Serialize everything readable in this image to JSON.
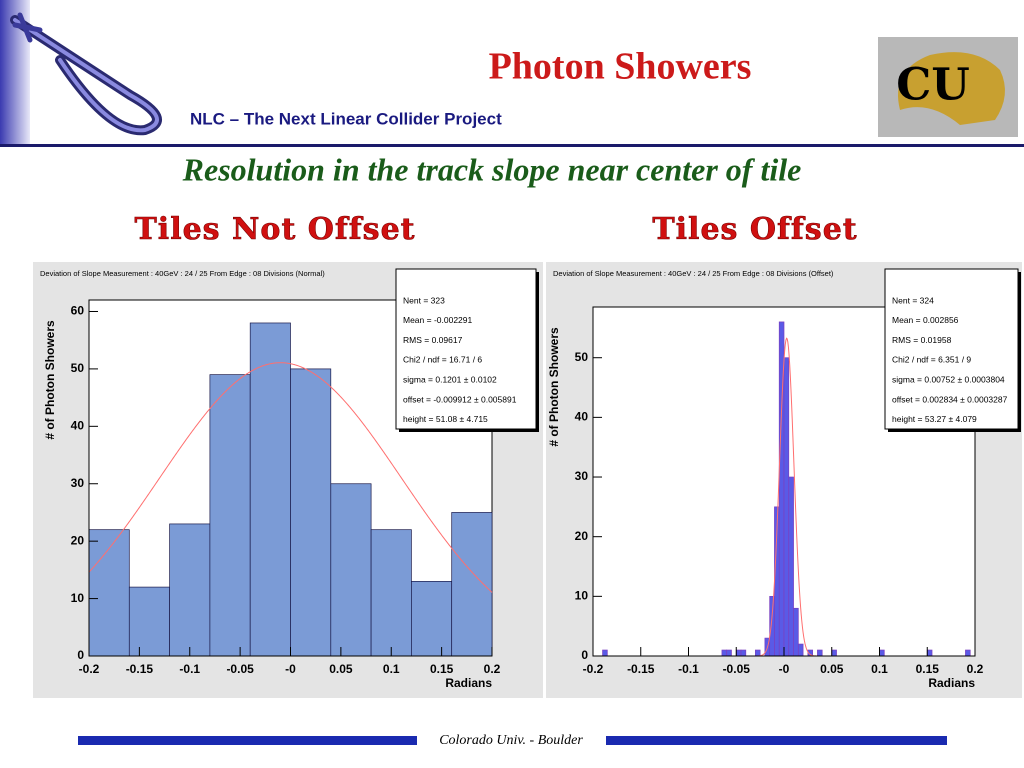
{
  "slide": {
    "title": "Photon Showers",
    "subtitle": "NLC – The Next Linear Collider Project",
    "logo_text": "CU",
    "heading": "Resolution in the track slope near center  of tile",
    "footer": "Colorado Univ. - Boulder"
  },
  "chart_data": [
    {
      "type": "histogram",
      "heading": "Tiles Not Offset",
      "title": "Deviation of Slope Measurement : 40GeV : 24 / 25 From Edge : 08 Divisions (Normal)",
      "x_label": "Radians",
      "y_label": "# of Photon Showers",
      "bins": [
        -0.2,
        -0.16,
        -0.12,
        -0.08,
        -0.04,
        0,
        0.04,
        0.08,
        0.12,
        0.16,
        0.2
      ],
      "values": [
        22,
        12,
        23,
        49,
        58,
        50,
        30,
        22,
        13,
        25
      ],
      "color": "#7b9bd6",
      "edge_color": "#1a1a4a",
      "fit": {
        "height": 51.08,
        "mean": -0.009912,
        "sigma": 0.1201,
        "color": "#ff6f6f"
      },
      "stats": [
        "Nent = 323",
        "Mean = -0.002291",
        "RMS = 0.09617",
        "Chi2 / ndf = 16.71 / 6",
        "sigma = 0.1201 ± 0.0102",
        "offset = -0.009912 ± 0.005891",
        "height = 51.08 ± 4.715"
      ],
      "xlim": [
        -0.2,
        0.2
      ],
      "ylim": [
        0,
        62
      ],
      "xticks": [
        -0.2,
        -0.15,
        -0.1,
        -0.05,
        {
          "value": 0,
          "label": "-0"
        },
        0.05,
        0.1,
        0.15,
        0.2
      ],
      "yticks": [
        0,
        10,
        20,
        30,
        40,
        50,
        60
      ]
    },
    {
      "type": "histogram",
      "heading": "Tiles Offset",
      "title": "Deviation of Slope Measurement : 40GeV : 24 / 25 From Edge : 08 Divisions (Offset)",
      "x_label": "Radians",
      "y_label": "# of Photon Showers",
      "bins": [
        -0.2,
        -0.195,
        -0.19,
        -0.185,
        -0.18,
        -0.175,
        -0.17,
        -0.165,
        -0.16,
        -0.155,
        -0.15,
        -0.145,
        -0.14,
        -0.135,
        -0.13,
        -0.125,
        -0.12,
        -0.115,
        -0.11,
        -0.105,
        -0.1,
        -0.095,
        -0.09,
        -0.085,
        -0.08,
        -0.075,
        -0.07,
        -0.065,
        -0.06,
        -0.055,
        -0.05,
        -0.045,
        -0.04,
        -0.035,
        -0.03,
        -0.025,
        -0.02,
        -0.015,
        -0.01,
        -0.005,
        0,
        0.005,
        0.01,
        0.015,
        0.02,
        0.025,
        0.03,
        0.035,
        0.04,
        0.045,
        0.05,
        0.055,
        0.06,
        0.065,
        0.07,
        0.075,
        0.08,
        0.085,
        0.09,
        0.095,
        0.1,
        0.105,
        0.11,
        0.115,
        0.12,
        0.125,
        0.13,
        0.135,
        0.14,
        0.145,
        0.15,
        0.155,
        0.16,
        0.165,
        0.17,
        0.175,
        0.18,
        0.185,
        0.19,
        0.195,
        0.2
      ],
      "values": [
        0,
        0,
        1,
        0,
        0,
        0,
        0,
        0,
        0,
        0,
        0,
        0,
        0,
        0,
        0,
        0,
        0,
        0,
        0,
        0,
        0,
        0,
        0,
        0,
        0,
        0,
        0,
        1,
        1,
        0,
        1,
        1,
        0,
        0,
        1,
        0,
        3,
        10,
        25,
        56,
        50,
        30,
        8,
        2,
        0,
        1,
        0,
        1,
        0,
        0,
        1,
        0,
        0,
        0,
        0,
        0,
        0,
        0,
        0,
        0,
        1,
        0,
        0,
        0,
        0,
        0,
        0,
        0,
        0,
        0,
        1,
        0,
        0,
        0,
        0,
        0,
        0,
        0,
        1,
        0
      ],
      "color": "#5a5ae6",
      "edge_color": "#7a3fc0",
      "fit": {
        "height": 53.27,
        "mean": 0.002834,
        "sigma": 0.00752,
        "color": "#ff6f6f"
      },
      "stats": [
        "Nent = 324",
        "Mean = 0.002856",
        "RMS = 0.01958",
        "Chi2 / ndf = 6.351 / 9",
        "sigma = 0.00752 ± 0.0003804",
        "offset = 0.002834 ± 0.0003287",
        "height = 53.27 ± 4.079"
      ],
      "xlim": [
        -0.2,
        0.2
      ],
      "ylim": [
        0,
        58.5
      ],
      "xticks": [
        -0.2,
        -0.15,
        -0.1,
        -0.05,
        {
          "value": 0,
          "label": "-0"
        },
        0.05,
        0.1,
        0.15,
        0.2
      ],
      "yticks": [
        0,
        10,
        20,
        30,
        40,
        50
      ]
    }
  ]
}
